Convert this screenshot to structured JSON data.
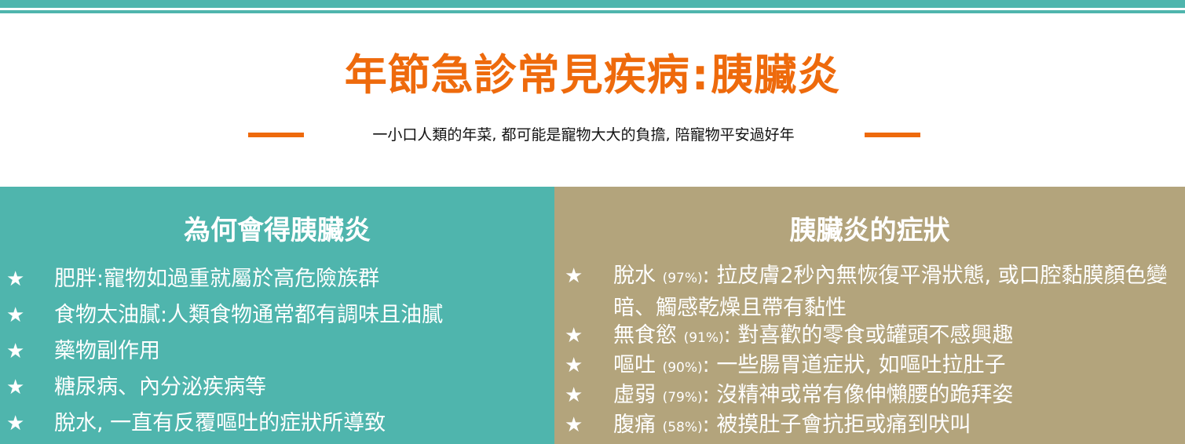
{
  "header": {
    "title_main": "年節急診常見疾病",
    "title_sep": ":",
    "title_topic": "胰臟炎",
    "subtitle": "一小口人類的年菜, 都可能是寵物大大的負擔, 陪寵物平安過好年"
  },
  "causes": {
    "heading": "為何會得胰臟炎",
    "items": [
      {
        "star": "★",
        "text": "肥胖:寵物如過重就屬於高危險族群"
      },
      {
        "star": "★",
        "text": "食物太油膩:人類食物通常都有調味且油膩"
      },
      {
        "star": "★",
        "text": "藥物副作用"
      },
      {
        "star": "★",
        "text": "糖尿病、內分泌疾病等"
      },
      {
        "star": "★",
        "text": "脫水, 一直有反覆嘔吐的症狀所導致"
      }
    ]
  },
  "symptoms": {
    "heading": "胰臟炎的症狀",
    "items": [
      {
        "star": "★",
        "name": "脫水",
        "pct": "(97%)",
        "desc": ": 拉皮膚2秒內無恢復平滑狀態, 或口腔黏膜顏色變暗、觸感乾燥且帶有黏性"
      },
      {
        "star": "★",
        "name": "無食慾",
        "pct": "(91%)",
        "desc": ": 對喜歡的零食或罐頭不感興趣"
      },
      {
        "star": "★",
        "name": "嘔吐",
        "pct": "(90%)",
        "desc": ": 一些腸胃道症狀, 如嘔吐拉肚子"
      },
      {
        "star": "★",
        "name": "虛弱",
        "pct": "(79%)",
        "desc": ": 沒精神或常有像伸懶腰的跪拜姿"
      },
      {
        "star": "★",
        "name": "腹痛",
        "pct": "(58%)",
        "desc": ": 被摸肚子會抗拒或痛到吠叫"
      }
    ]
  },
  "colors": {
    "accent_orange": "#ee6a0c",
    "teal": "#4fb5ad",
    "khaki": "#b3a47c"
  }
}
